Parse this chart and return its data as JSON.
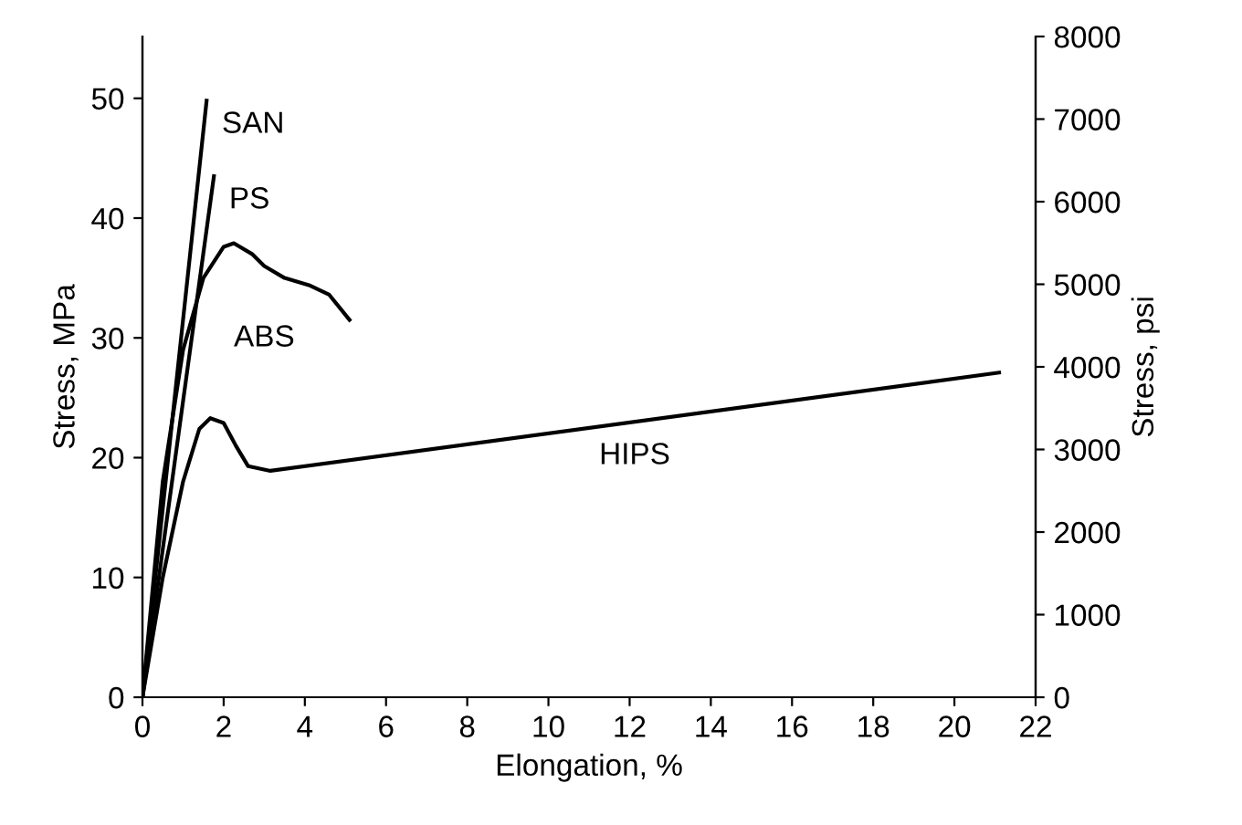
{
  "chart_data": {
    "type": "line",
    "xlabel": "Elongation, %",
    "ylabel": "Stress, MPa",
    "y2label": "Stress, psi",
    "series": [
      {
        "name": "SAN",
        "color": "#000000",
        "x": [
          0,
          1.58
        ],
        "values": [
          0,
          49.8
        ]
      },
      {
        "name": "PS",
        "color": "#000000",
        "x": [
          0,
          1.76
        ],
        "values": [
          0,
          43.5
        ]
      },
      {
        "name": "ABS",
        "color": "#000000",
        "x": [
          0,
          0.5,
          1,
          1.5,
          2,
          2.25,
          2.7,
          3,
          3.5,
          4.1,
          4.6,
          5.1
        ],
        "values": [
          0,
          18,
          29,
          35,
          37.6,
          37.9,
          37,
          36,
          35,
          34.4,
          33.6,
          31.5
        ]
      },
      {
        "name": "HIPS",
        "color": "#000000",
        "x": [
          0,
          0.5,
          1,
          1.4,
          1.67,
          2,
          2.3,
          2.6,
          3.15,
          21.1
        ],
        "values": [
          0,
          10,
          18,
          22.4,
          23.3,
          22.9,
          21,
          19.3,
          18.9,
          27.1
        ]
      }
    ],
    "xlim": [
      0,
      22
    ],
    "xticks": [
      0,
      2,
      4,
      6,
      8,
      10,
      12,
      14,
      16,
      18,
      20,
      22
    ],
    "ylim": [
      0,
      55.16
    ],
    "yticks": [
      0,
      10,
      20,
      30,
      40,
      50
    ],
    "y2lim": [
      0,
      8000
    ],
    "y2ticks": [
      0,
      1000,
      2000,
      3000,
      4000,
      5000,
      6000,
      7000,
      8000
    ],
    "marker": "none",
    "line_style": "solid"
  }
}
